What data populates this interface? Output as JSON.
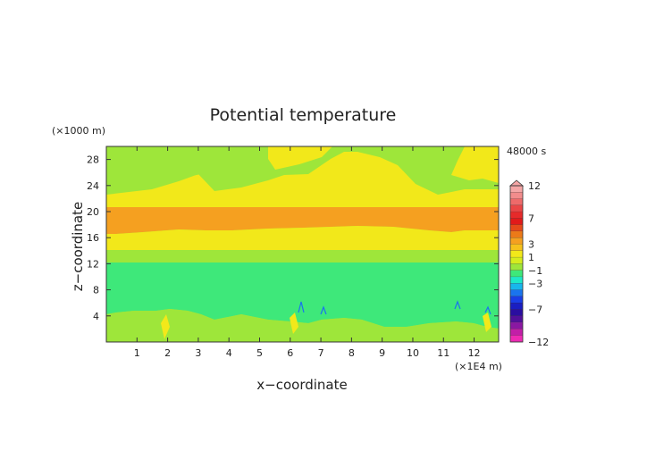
{
  "chart_data": {
    "type": "heatmap",
    "title": "Potential temperature",
    "xlabel": "x−coordinate",
    "ylabel": "z−coordinate",
    "x_unit": "(×1E4 m)",
    "y_unit": "(×1000 m)",
    "time_label": "48000 s",
    "xlim": [
      0,
      12.8
    ],
    "ylim": [
      0,
      30
    ],
    "x_ticks": [
      1,
      2,
      3,
      4,
      5,
      6,
      7,
      8,
      9,
      10,
      11,
      12
    ],
    "y_ticks": [
      4,
      8,
      12,
      16,
      20,
      24,
      28
    ],
    "colorbar": {
      "labels": [
        "12",
        "7",
        "3",
        "1",
        "−1",
        "−3",
        "−7",
        "−12"
      ],
      "label_levels": [
        12,
        7,
        3,
        1,
        -1,
        -3,
        -7,
        -12
      ],
      "levels": [
        12,
        11,
        10,
        9,
        8,
        7,
        6,
        5,
        4,
        3,
        2,
        1,
        0,
        -1,
        -2,
        -3,
        -4,
        -5,
        -6,
        -7,
        -8,
        -9,
        -10,
        -11,
        -12
      ],
      "colors": [
        "#f4a6a6",
        "#f28c8c",
        "#ee6a6a",
        "#ea4646",
        "#e62a2a",
        "#e21a1a",
        "#e64a1a",
        "#ec7a18",
        "#f5a020",
        "#f6c21c",
        "#f2e81a",
        "#d6ec1e",
        "#9ee63a",
        "#3ee87a",
        "#1ee8c8",
        "#18b6ec",
        "#1a74ee",
        "#1a3ee6",
        "#1a1ec2",
        "#2a0ea0",
        "#52109a",
        "#8a18a2",
        "#c21ea8",
        "#ee2ab4"
      ]
    },
    "regions": [
      {
        "level_range": [
          0,
          1
        ],
        "color": "#9ee63a",
        "description_z_km": "near-surface to ~4, plus 22-30 patches"
      },
      {
        "level_range": [
          1,
          2
        ],
        "color": "#f2e81a",
        "description_z_km": "14-17 and 20.5-25"
      },
      {
        "level_range": [
          3,
          4
        ],
        "color": "#f5a020",
        "description_z_km": "17-20.5"
      },
      {
        "level_range": [
          -1,
          0
        ],
        "color": "#3ee87a",
        "description_z_km": "4-12"
      }
    ]
  }
}
